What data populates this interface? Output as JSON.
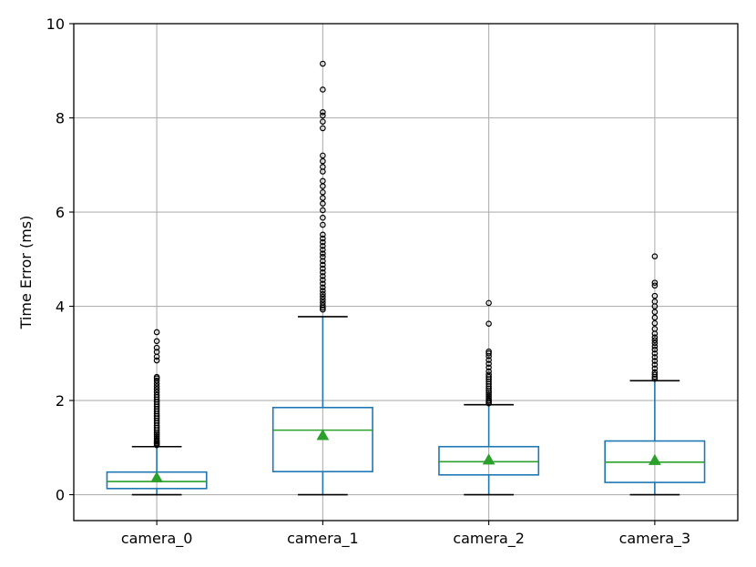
{
  "chart_data": {
    "type": "boxplot",
    "title": "",
    "xlabel": "",
    "ylabel": "Time Error (ms)",
    "ylim": [
      -0.55,
      10
    ],
    "yticks": [
      "0",
      "2",
      "4",
      "6",
      "8",
      "10"
    ],
    "grid": true,
    "legend": "none",
    "colors": {
      "box": "#1f77b4",
      "median": "#2ca02c",
      "mean_marker": "#2ca02c",
      "whisker_cap": "#000000",
      "outlier": "#000000",
      "grid": "#b0b0b0"
    },
    "categories": [
      "camera_0",
      "camera_1",
      "camera_2",
      "camera_3"
    ],
    "boxes": [
      {
        "label": "camera_0",
        "min": 0.0,
        "q1": 0.13,
        "median": 0.28,
        "q3": 0.48,
        "max": 1.02,
        "mean": 0.36,
        "outliers": [
          1.05,
          1.08,
          1.1,
          1.13,
          1.16,
          1.2,
          1.24,
          1.28,
          1.32,
          1.37,
          1.42,
          1.47,
          1.52,
          1.57,
          1.62,
          1.67,
          1.72,
          1.77,
          1.82,
          1.87,
          1.92,
          1.97,
          2.02,
          2.07,
          2.12,
          2.18,
          2.24,
          2.3,
          2.36,
          2.42,
          2.47,
          2.5,
          2.85,
          2.93,
          3.03,
          3.12,
          3.26,
          3.45
        ]
      },
      {
        "label": "camera_1",
        "min": 0.0,
        "q1": 0.49,
        "median": 1.37,
        "q3": 1.85,
        "max": 3.78,
        "mean": 1.26,
        "outliers": [
          3.93,
          3.97,
          4.02,
          4.08,
          4.14,
          4.2,
          4.26,
          4.33,
          4.4,
          4.48,
          4.56,
          4.64,
          4.72,
          4.8,
          4.88,
          4.96,
          5.05,
          5.12,
          5.2,
          5.28,
          5.36,
          5.44,
          5.52,
          5.73,
          5.88,
          6.04,
          6.18,
          6.3,
          6.42,
          6.55,
          6.66,
          6.86,
          6.96,
          7.08,
          7.2,
          7.78,
          7.92,
          8.05,
          8.12,
          8.6,
          9.15
        ]
      },
      {
        "label": "camera_2",
        "min": 0.0,
        "q1": 0.42,
        "median": 0.7,
        "q3": 1.02,
        "max": 1.91,
        "mean": 0.74,
        "outliers": [
          1.94,
          1.97,
          2.0,
          2.04,
          2.08,
          2.12,
          2.16,
          2.2,
          2.25,
          2.3,
          2.35,
          2.4,
          2.45,
          2.5,
          2.55,
          2.62,
          2.7,
          2.78,
          2.86,
          2.94,
          3.0,
          3.04,
          3.63,
          4.07
        ]
      },
      {
        "label": "camera_3",
        "min": 0.0,
        "q1": 0.26,
        "median": 0.69,
        "q3": 1.14,
        "max": 2.42,
        "mean": 0.73,
        "outliers": [
          2.46,
          2.5,
          2.55,
          2.6,
          2.68,
          2.76,
          2.84,
          2.92,
          3.0,
          3.08,
          3.15,
          3.22,
          3.28,
          3.34,
          3.42,
          3.52,
          3.64,
          3.76,
          3.88,
          4.0,
          4.1,
          4.22,
          4.44,
          4.5,
          5.06
        ]
      }
    ]
  }
}
